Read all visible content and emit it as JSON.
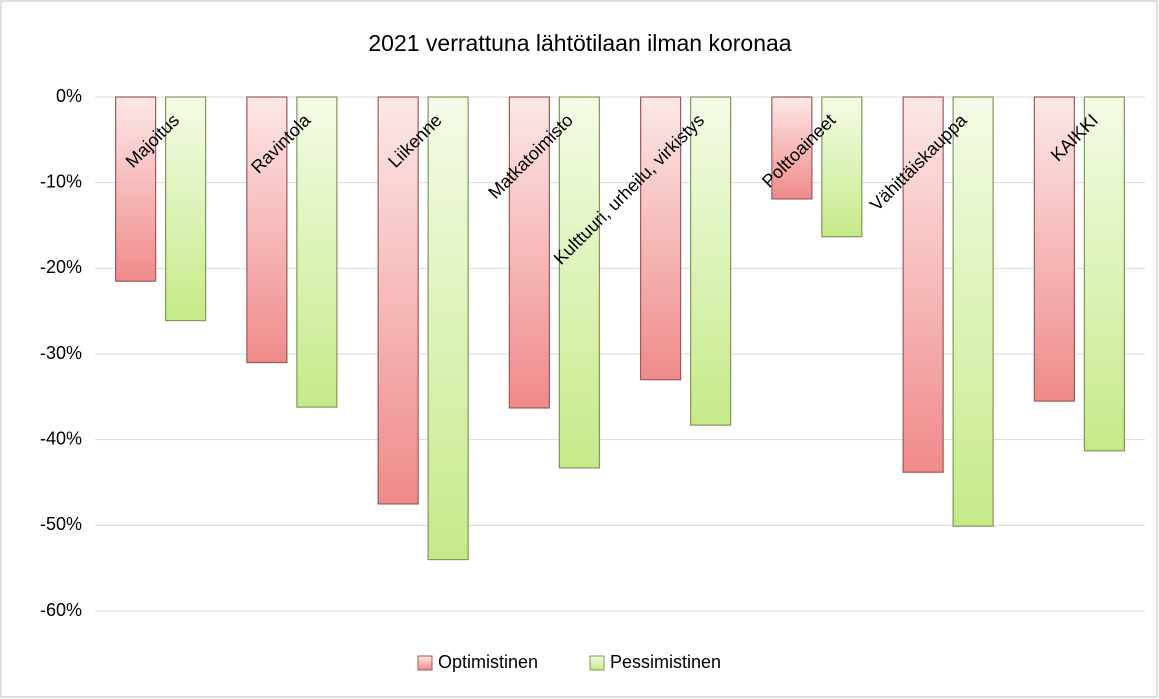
{
  "chart_data": {
    "type": "bar",
    "title": "2021 verrattuna lähtötilaan ilman koronaa",
    "categories": [
      "Majoitus",
      "Ravintola",
      "Liikenne",
      "Matkatoimisto",
      "Kulttuuri, urheilu, virkistys",
      "Polttoaineet",
      "Vähittäiskauppa",
      "KAIKKI"
    ],
    "series": [
      {
        "name": "Optimistinen",
        "color": "#f08a8a",
        "values": [
          -21.5,
          -31.0,
          -47.5,
          -36.3,
          -33.0,
          -11.9,
          -43.8,
          -35.5
        ]
      },
      {
        "name": "Pessimistinen",
        "color": "#c6ea88",
        "values": [
          -26.1,
          -36.2,
          -54.0,
          -43.3,
          -38.3,
          -16.3,
          -50.1,
          -41.3
        ]
      }
    ],
    "ylim": [
      -60,
      0
    ],
    "yticks": [
      {
        "value": 0,
        "label": "0%"
      },
      {
        "value": -10,
        "label": "-10%"
      },
      {
        "value": -20,
        "label": "-20%"
      },
      {
        "value": -30,
        "label": "-30%"
      },
      {
        "value": -40,
        "label": "-40%"
      },
      {
        "value": -50,
        "label": "-50%"
      },
      {
        "value": -60,
        "label": "-60%"
      }
    ],
    "grid": true,
    "legend": "bottom"
  }
}
